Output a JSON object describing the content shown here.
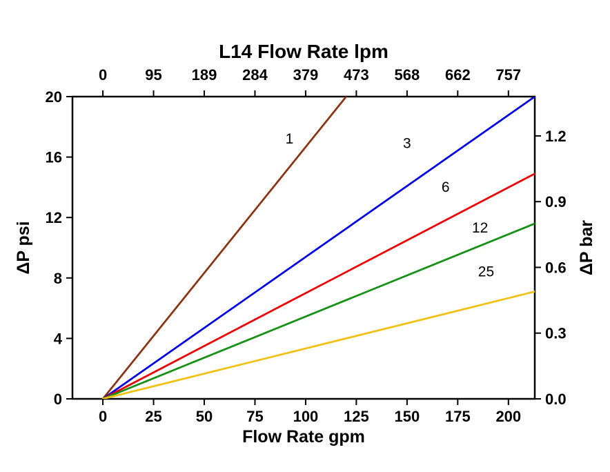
{
  "chart_data": {
    "type": "line",
    "background": "#ffffff",
    "top_axis": {
      "title": "L14 Flow Rate lpm",
      "tick_labels": [
        "0",
        "95",
        "189",
        "284",
        "379",
        "473",
        "568",
        "662",
        "757"
      ]
    },
    "bottom_axis": {
      "title": "Flow Rate gpm",
      "ticks": [
        0,
        25,
        50,
        75,
        100,
        125,
        150,
        175,
        200
      ]
    },
    "left_axis": {
      "title": "ΔP psi",
      "ticks": [
        0,
        4,
        8,
        12,
        16,
        20
      ]
    },
    "right_axis": {
      "title": "ΔP bar",
      "tick_labels": [
        "0.0",
        "0.3",
        "0.6",
        "0.9",
        "1.2"
      ],
      "tick_psi": [
        0,
        4.35,
        8.7,
        13.05,
        17.4
      ]
    },
    "xlim": [
      -15,
      213
    ],
    "ylim": [
      0,
      20
    ],
    "series": [
      {
        "label": "1",
        "color": "#8a3312",
        "points": [
          [
            0,
            0
          ],
          [
            120,
            20
          ]
        ],
        "label_pos": [
          92,
          16.9
        ]
      },
      {
        "label": "3",
        "color": "#0000e6",
        "points": [
          [
            0,
            0
          ],
          [
            213,
            20
          ]
        ],
        "label_pos": [
          150,
          16.6
        ]
      },
      {
        "label": "6",
        "color": "#ee0000",
        "points": [
          [
            0,
            0
          ],
          [
            213,
            14.9
          ]
        ],
        "label_pos": [
          169,
          13.7
        ]
      },
      {
        "label": "12",
        "color": "#149014",
        "points": [
          [
            0,
            0
          ],
          [
            213,
            11.6
          ]
        ],
        "label_pos": [
          186,
          11.0
        ]
      },
      {
        "label": "25",
        "color": "#f2c011",
        "points": [
          [
            0,
            0
          ],
          [
            213,
            7.1
          ]
        ],
        "label_pos": [
          189,
          8.1
        ]
      }
    ]
  }
}
